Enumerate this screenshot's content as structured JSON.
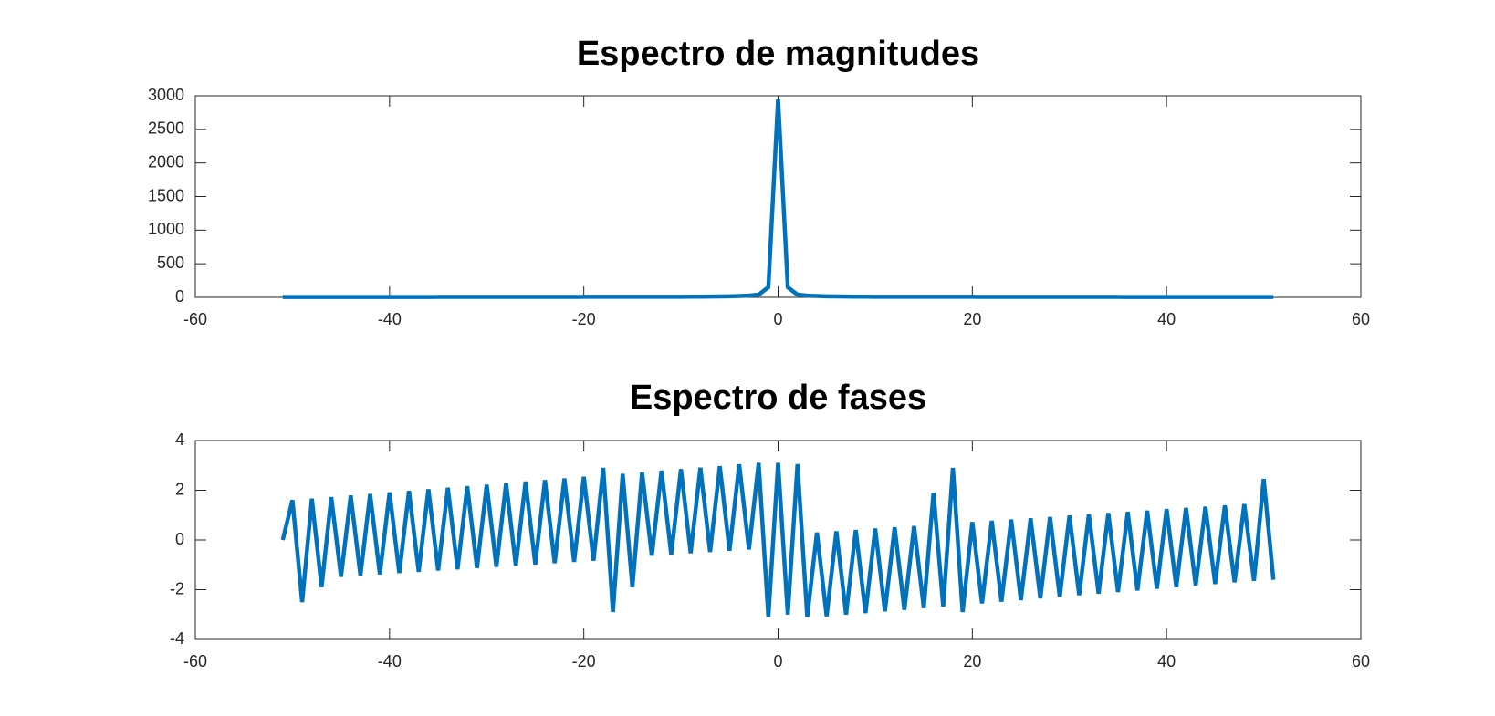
{
  "chart_data": [
    {
      "type": "line",
      "title": "Espectro de magnitudes",
      "x": [
        -51,
        -50,
        -49,
        -48,
        -47,
        -46,
        -45,
        -44,
        -43,
        -42,
        -41,
        -40,
        -39,
        -38,
        -37,
        -36,
        -35,
        -34,
        -33,
        -32,
        -31,
        -30,
        -29,
        -28,
        -27,
        -26,
        -25,
        -24,
        -23,
        -22,
        -21,
        -20,
        -19,
        -18,
        -17,
        -16,
        -15,
        -14,
        -13,
        -12,
        -11,
        -10,
        -9,
        -8,
        -7,
        -6,
        -5,
        -4,
        -3,
        -2,
        -1,
        0,
        1,
        2,
        3,
        4,
        5,
        6,
        7,
        8,
        9,
        10,
        11,
        12,
        13,
        14,
        15,
        16,
        17,
        18,
        19,
        20,
        21,
        22,
        23,
        24,
        25,
        26,
        27,
        28,
        29,
        30,
        31,
        32,
        33,
        34,
        35,
        36,
        37,
        38,
        39,
        40,
        41,
        42,
        43,
        44,
        45,
        46,
        47,
        48,
        49,
        50,
        51
      ],
      "series": [
        {
          "color": "#0072bd",
          "values": [
            5,
            5,
            5,
            5,
            5,
            5,
            5,
            5,
            5,
            5,
            5,
            5,
            5,
            5,
            5,
            5,
            6,
            6,
            6,
            6,
            6,
            6,
            6,
            6,
            6,
            6,
            6,
            6,
            6,
            6,
            6,
            8,
            8,
            8,
            8,
            8,
            8,
            8,
            8,
            8,
            8,
            8,
            10,
            11,
            12,
            14,
            16,
            20,
            25,
            40,
            150,
            2950,
            150,
            40,
            25,
            20,
            16,
            14,
            12,
            11,
            10,
            8,
            8,
            8,
            8,
            8,
            8,
            8,
            8,
            8,
            8,
            8,
            6,
            6,
            6,
            6,
            6,
            6,
            6,
            6,
            6,
            6,
            6,
            6,
            6,
            6,
            6,
            5,
            5,
            5,
            5,
            5,
            5,
            5,
            5,
            5,
            5,
            5,
            5,
            5,
            5,
            5,
            5
          ]
        }
      ],
      "xlim": [
        -60,
        60
      ],
      "xticks": [
        -60,
        -40,
        -20,
        0,
        20,
        40,
        60
      ],
      "ylim": [
        0,
        3000
      ],
      "yticks": [
        0,
        500,
        1000,
        1500,
        2000,
        2500,
        3000
      ]
    },
    {
      "type": "line",
      "title": "Espectro de fases",
      "x": [
        -51,
        -50,
        -49,
        -48,
        -47,
        -46,
        -45,
        -44,
        -43,
        -42,
        -41,
        -40,
        -39,
        -38,
        -37,
        -36,
        -35,
        -34,
        -33,
        -32,
        -31,
        -30,
        -29,
        -28,
        -27,
        -26,
        -25,
        -24,
        -23,
        -22,
        -21,
        -20,
        -19,
        -18,
        -17,
        -16,
        -15,
        -14,
        -13,
        -12,
        -11,
        -10,
        -9,
        -8,
        -7,
        -6,
        -5,
        -4,
        -3,
        -2,
        -1,
        0,
        1,
        2,
        3,
        4,
        5,
        6,
        7,
        8,
        9,
        10,
        11,
        12,
        13,
        14,
        15,
        16,
        17,
        18,
        19,
        20,
        21,
        22,
        23,
        24,
        25,
        26,
        27,
        28,
        29,
        30,
        31,
        32,
        33,
        34,
        35,
        36,
        37,
        38,
        39,
        40,
        41,
        42,
        43,
        44,
        45,
        46,
        47,
        48,
        49,
        50,
        51
      ],
      "series": [
        {
          "color": "#0072bd",
          "values": [
            0,
            1.6,
            -2.5,
            1.66,
            -1.9,
            1.72,
            -1.48,
            1.79,
            -1.43,
            1.85,
            -1.38,
            1.91,
            -1.33,
            1.97,
            -1.28,
            2.04,
            -1.23,
            2.1,
            -1.18,
            2.16,
            -1.13,
            2.22,
            -1.08,
            2.29,
            -1.03,
            2.35,
            -0.98,
            2.41,
            -0.93,
            2.47,
            -0.88,
            2.54,
            -0.83,
            2.9,
            -2.9,
            2.66,
            -1.9,
            2.72,
            -0.63,
            2.79,
            -0.58,
            2.85,
            -0.53,
            2.91,
            -0.48,
            2.97,
            -0.43,
            3.04,
            -0.38,
            3.1,
            -3.1,
            3.1,
            -3.0,
            3.05,
            -3.1,
            0.3,
            -3.07,
            0.35,
            -3.0,
            0.4,
            -2.94,
            0.46,
            -2.87,
            0.51,
            -2.81,
            0.56,
            -2.74,
            1.9,
            -2.68,
            2.9,
            -2.9,
            0.72,
            -2.55,
            0.77,
            -2.48,
            0.82,
            -2.42,
            0.87,
            -2.35,
            0.92,
            -2.29,
            0.98,
            -2.22,
            1.03,
            -2.16,
            1.08,
            -2.09,
            1.13,
            -2.03,
            1.18,
            -1.96,
            1.24,
            -1.9,
            1.29,
            -1.83,
            1.34,
            -1.77,
            1.39,
            -1.7,
            1.44,
            -1.64,
            2.45,
            -1.6
          ]
        }
      ],
      "xlim": [
        -60,
        60
      ],
      "xticks": [
        -60,
        -40,
        -20,
        0,
        20,
        40,
        60
      ],
      "ylim": [
        -4,
        4
      ],
      "yticks": [
        -4,
        -2,
        0,
        2,
        4
      ]
    }
  ]
}
